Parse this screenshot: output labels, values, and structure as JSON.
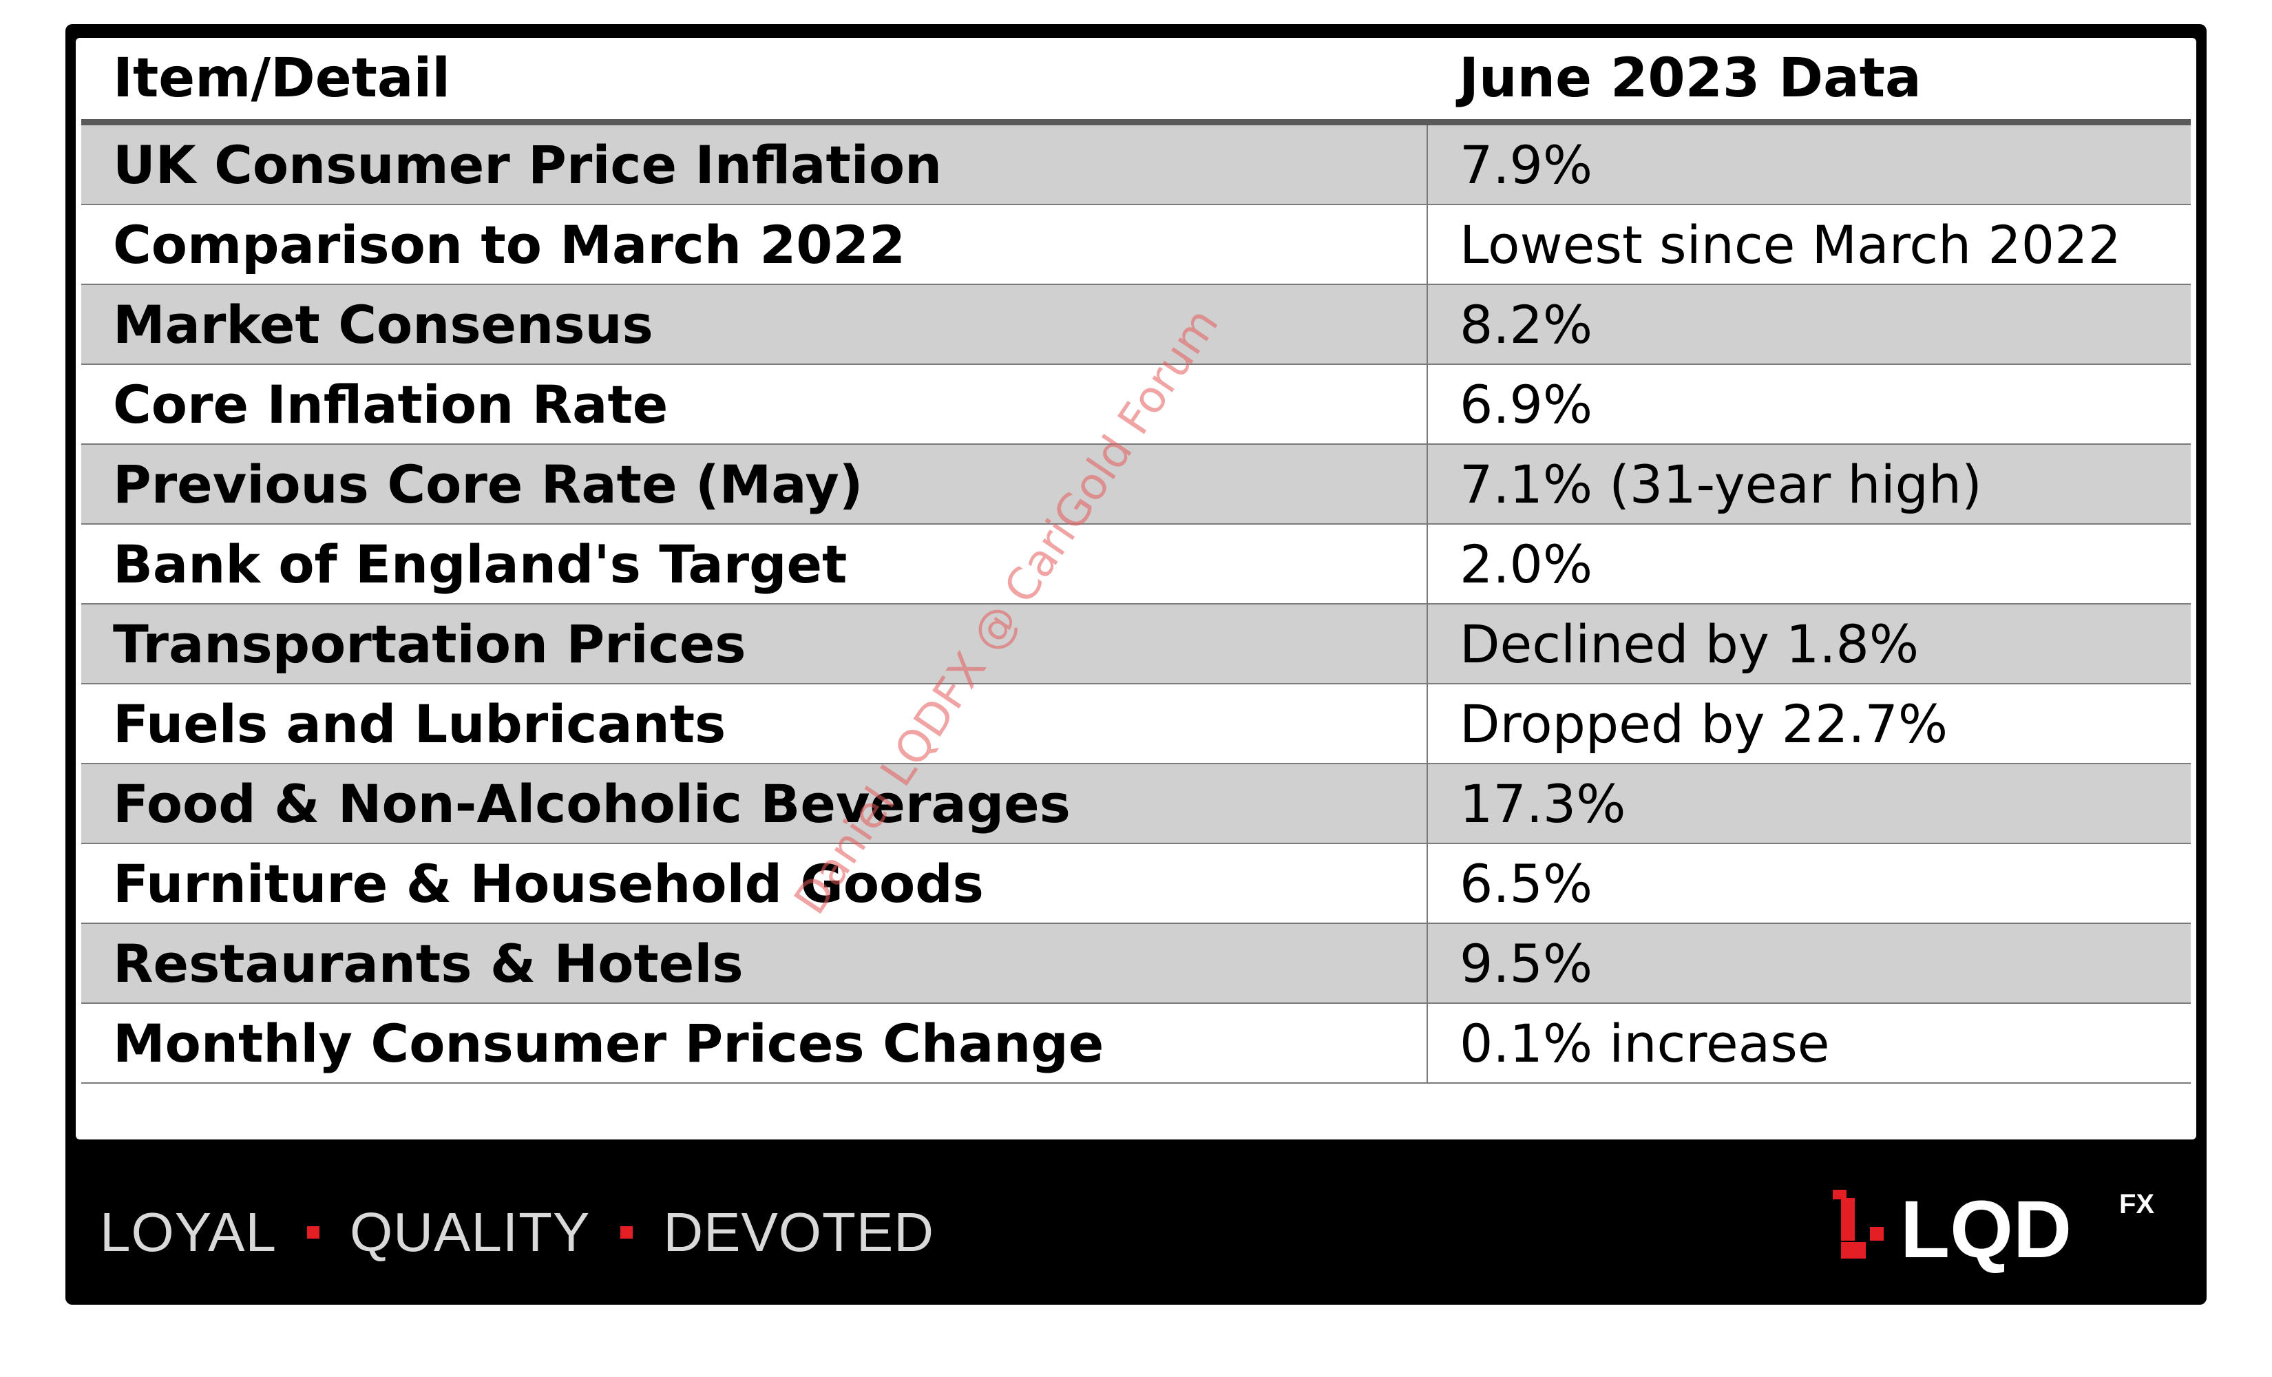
{
  "table": {
    "headers": [
      "Item/Detail",
      "June 2023 Data"
    ],
    "rows": [
      {
        "item": "UK Consumer Price Inflation",
        "value": "7.9%"
      },
      {
        "item": "Comparison to March 2022",
        "value": "Lowest since March 2022"
      },
      {
        "item": "Market Consensus",
        "value": "8.2%"
      },
      {
        "item": "Core Inflation Rate",
        "value": "6.9%"
      },
      {
        "item": "Previous Core Rate (May)",
        "value": "7.1% (31-year high)"
      },
      {
        "item": "Bank of England's Target",
        "value": "2.0%"
      },
      {
        "item": "Transportation Prices",
        "value": "Declined by 1.8%"
      },
      {
        "item": "Fuels and Lubricants",
        "value": "Dropped by 22.7%"
      },
      {
        "item": "Food & Non-Alcoholic Beverages",
        "value": "17.3%"
      },
      {
        "item": "Furniture & Household Goods",
        "value": "6.5%"
      },
      {
        "item": "Restaurants & Hotels",
        "value": "9.5%"
      },
      {
        "item": "Monthly Consumer Prices Change",
        "value": "0.1% increase"
      }
    ]
  },
  "footer": {
    "tagline": [
      "LOYAL",
      "QUALITY",
      "DEVOTED"
    ],
    "logo_text": "LQD",
    "logo_superscript": "FX"
  },
  "watermark": "Daniel LQDFX @ CariGold Forum",
  "colors": {
    "accent": "#e31e24",
    "row_shade": "#d0d0d0",
    "footer_bg": "#000000"
  }
}
